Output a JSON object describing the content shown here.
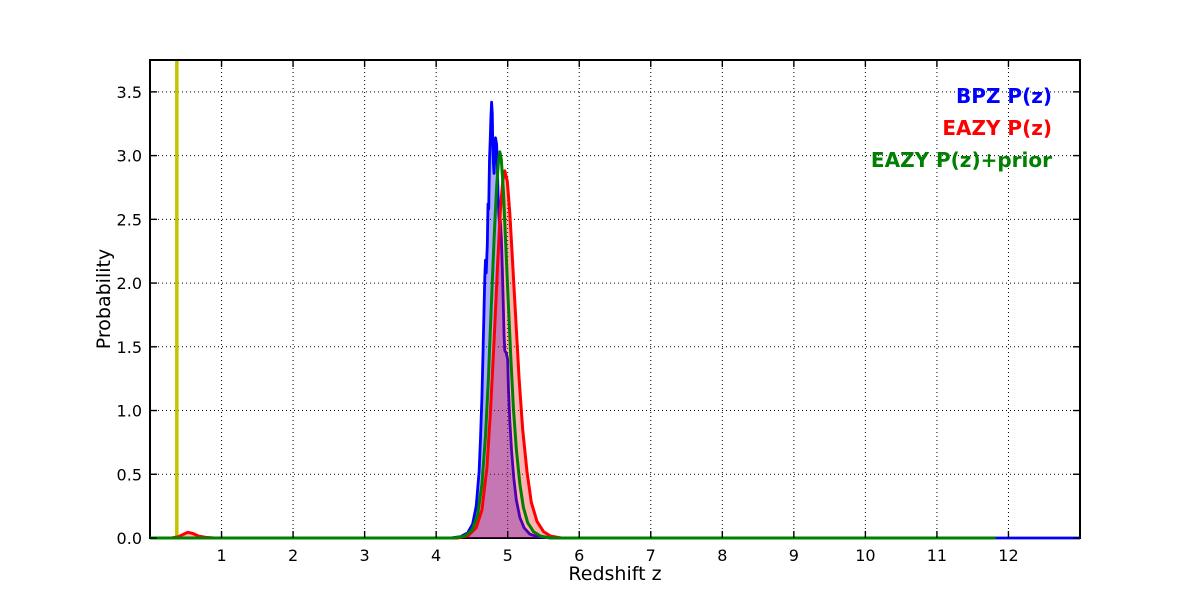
{
  "figure": {
    "background": "#ffffff"
  },
  "chart_data": {
    "type": "line",
    "title": "",
    "xlabel": "Redshift z",
    "ylabel": "Probability",
    "xlim": [
      0,
      13
    ],
    "ylim": [
      0,
      3.75
    ],
    "grid": "dotted black on both axes",
    "legend_position": "upper right inside plot, colored text only (no box, no markers)",
    "xticks": [
      {
        "v": 1,
        "label": "1"
      },
      {
        "v": 2,
        "label": "2"
      },
      {
        "v": 3,
        "label": "3"
      },
      {
        "v": 4,
        "label": "4"
      },
      {
        "v": 5,
        "label": "5"
      },
      {
        "v": 6,
        "label": "6"
      },
      {
        "v": 7,
        "label": "7"
      },
      {
        "v": 8,
        "label": "8"
      },
      {
        "v": 9,
        "label": "9"
      },
      {
        "v": 10,
        "label": "10"
      },
      {
        "v": 11,
        "label": "11"
      },
      {
        "v": 12,
        "label": "12"
      }
    ],
    "yticks": [
      {
        "v": 0,
        "label": "0.0"
      },
      {
        "v": 0.5,
        "label": "0.5"
      },
      {
        "v": 1,
        "label": "1.0"
      },
      {
        "v": 1.5,
        "label": "1.5"
      },
      {
        "v": 2,
        "label": "2.0"
      },
      {
        "v": 2.5,
        "label": "2.5"
      },
      {
        "v": 3,
        "label": "3.0"
      },
      {
        "v": 3.5,
        "label": "3.5"
      }
    ],
    "marker_line": {
      "x": 0.375,
      "color": "#c3c300",
      "width": 3.5
    },
    "series": [
      {
        "name": "BPZ P(z)",
        "color": "#0000ff",
        "fill": true,
        "fill_opacity": 0.33,
        "line_width": 2.8,
        "points": [
          [
            0,
            0
          ],
          [
            4.2,
            0
          ],
          [
            4.34,
            0.01
          ],
          [
            4.44,
            0.04
          ],
          [
            4.51,
            0.11
          ],
          [
            4.56,
            0.25
          ],
          [
            4.6,
            0.52
          ],
          [
            4.62,
            0.78
          ],
          [
            4.64,
            1.1
          ],
          [
            4.655,
            1.45
          ],
          [
            4.67,
            1.82
          ],
          [
            4.68,
            2.05
          ],
          [
            4.69,
            2.18
          ],
          [
            4.7,
            2.08
          ],
          [
            4.715,
            2.3
          ],
          [
            4.725,
            2.62
          ],
          [
            4.735,
            2.58
          ],
          [
            4.745,
            2.97
          ],
          [
            4.755,
            3.12
          ],
          [
            4.765,
            3.3
          ],
          [
            4.775,
            3.42
          ],
          [
            4.785,
            3.33
          ],
          [
            4.79,
            3.12
          ],
          [
            4.8,
            2.94
          ],
          [
            4.81,
            2.86
          ],
          [
            4.82,
            3.02
          ],
          [
            4.83,
            3.14
          ],
          [
            4.845,
            3.09
          ],
          [
            4.855,
            2.94
          ],
          [
            4.865,
            2.72
          ],
          [
            4.875,
            2.55
          ],
          [
            4.885,
            2.47
          ],
          [
            4.895,
            2.5
          ],
          [
            4.91,
            2.36
          ],
          [
            4.925,
            2.12
          ],
          [
            4.94,
            1.8
          ],
          [
            4.95,
            1.58
          ],
          [
            4.96,
            1.47
          ],
          [
            4.98,
            1.45
          ],
          [
            5,
            1.4
          ],
          [
            5.01,
            1.18
          ],
          [
            5.03,
            0.92
          ],
          [
            5.055,
            0.68
          ],
          [
            5.085,
            0.47
          ],
          [
            5.12,
            0.3
          ],
          [
            5.17,
            0.16
          ],
          [
            5.23,
            0.08
          ],
          [
            5.31,
            0.03
          ],
          [
            5.42,
            0.01
          ],
          [
            5.6,
            0
          ],
          [
            13,
            0
          ]
        ]
      },
      {
        "name": "EAZY P(z)",
        "color": "#ff0000",
        "fill": true,
        "fill_opacity": 0.3,
        "line_width": 3,
        "points": [
          [
            0,
            0
          ],
          [
            0.3,
            0
          ],
          [
            0.4,
            0.01
          ],
          [
            0.47,
            0.03
          ],
          [
            0.53,
            0.045
          ],
          [
            0.6,
            0.035
          ],
          [
            0.68,
            0.015
          ],
          [
            0.78,
            0.005
          ],
          [
            0.9,
            0
          ],
          [
            4.3,
            0
          ],
          [
            4.45,
            0.02
          ],
          [
            4.56,
            0.08
          ],
          [
            4.64,
            0.22
          ],
          [
            4.71,
            0.55
          ],
          [
            4.76,
            1
          ],
          [
            4.81,
            1.55
          ],
          [
            4.855,
            2.1
          ],
          [
            4.895,
            2.55
          ],
          [
            4.93,
            2.8
          ],
          [
            4.96,
            2.88
          ],
          [
            4.995,
            2.8
          ],
          [
            5.03,
            2.55
          ],
          [
            5.07,
            2.15
          ],
          [
            5.115,
            1.7
          ],
          [
            5.16,
            1.25
          ],
          [
            5.21,
            0.85
          ],
          [
            5.27,
            0.52
          ],
          [
            5.33,
            0.28
          ],
          [
            5.41,
            0.13
          ],
          [
            5.5,
            0.05
          ],
          [
            5.6,
            0.015
          ],
          [
            5.75,
            0
          ],
          [
            11.82,
            0
          ]
        ]
      },
      {
        "name": "EAZY P(z)+prior",
        "color": "#008000",
        "fill": false,
        "fill_opacity": 0,
        "line_width": 3,
        "points": [
          [
            0,
            0
          ],
          [
            4.25,
            0
          ],
          [
            4.4,
            0.015
          ],
          [
            4.5,
            0.06
          ],
          [
            4.58,
            0.18
          ],
          [
            4.64,
            0.42
          ],
          [
            4.69,
            0.8
          ],
          [
            4.73,
            1.25
          ],
          [
            4.77,
            1.8
          ],
          [
            4.81,
            2.35
          ],
          [
            4.845,
            2.75
          ],
          [
            4.87,
            2.95
          ],
          [
            4.89,
            3.03
          ],
          [
            4.91,
            2.97
          ],
          [
            4.94,
            2.72
          ],
          [
            4.97,
            2.35
          ],
          [
            5,
            1.95
          ],
          [
            5.04,
            1.45
          ],
          [
            5.08,
            1.02
          ],
          [
            5.12,
            0.7
          ],
          [
            5.17,
            0.42
          ],
          [
            5.22,
            0.24
          ],
          [
            5.28,
            0.12
          ],
          [
            5.36,
            0.05
          ],
          [
            5.46,
            0.015
          ],
          [
            5.6,
            0
          ],
          [
            11.82,
            0
          ]
        ]
      }
    ]
  },
  "legend": {
    "items": [
      {
        "label": "BPZ P(z)",
        "color": "#0000ff"
      },
      {
        "label": "EAZY P(z)",
        "color": "#ff0000"
      },
      {
        "label": "EAZY P(z)+prior",
        "color": "#008000"
      }
    ]
  }
}
